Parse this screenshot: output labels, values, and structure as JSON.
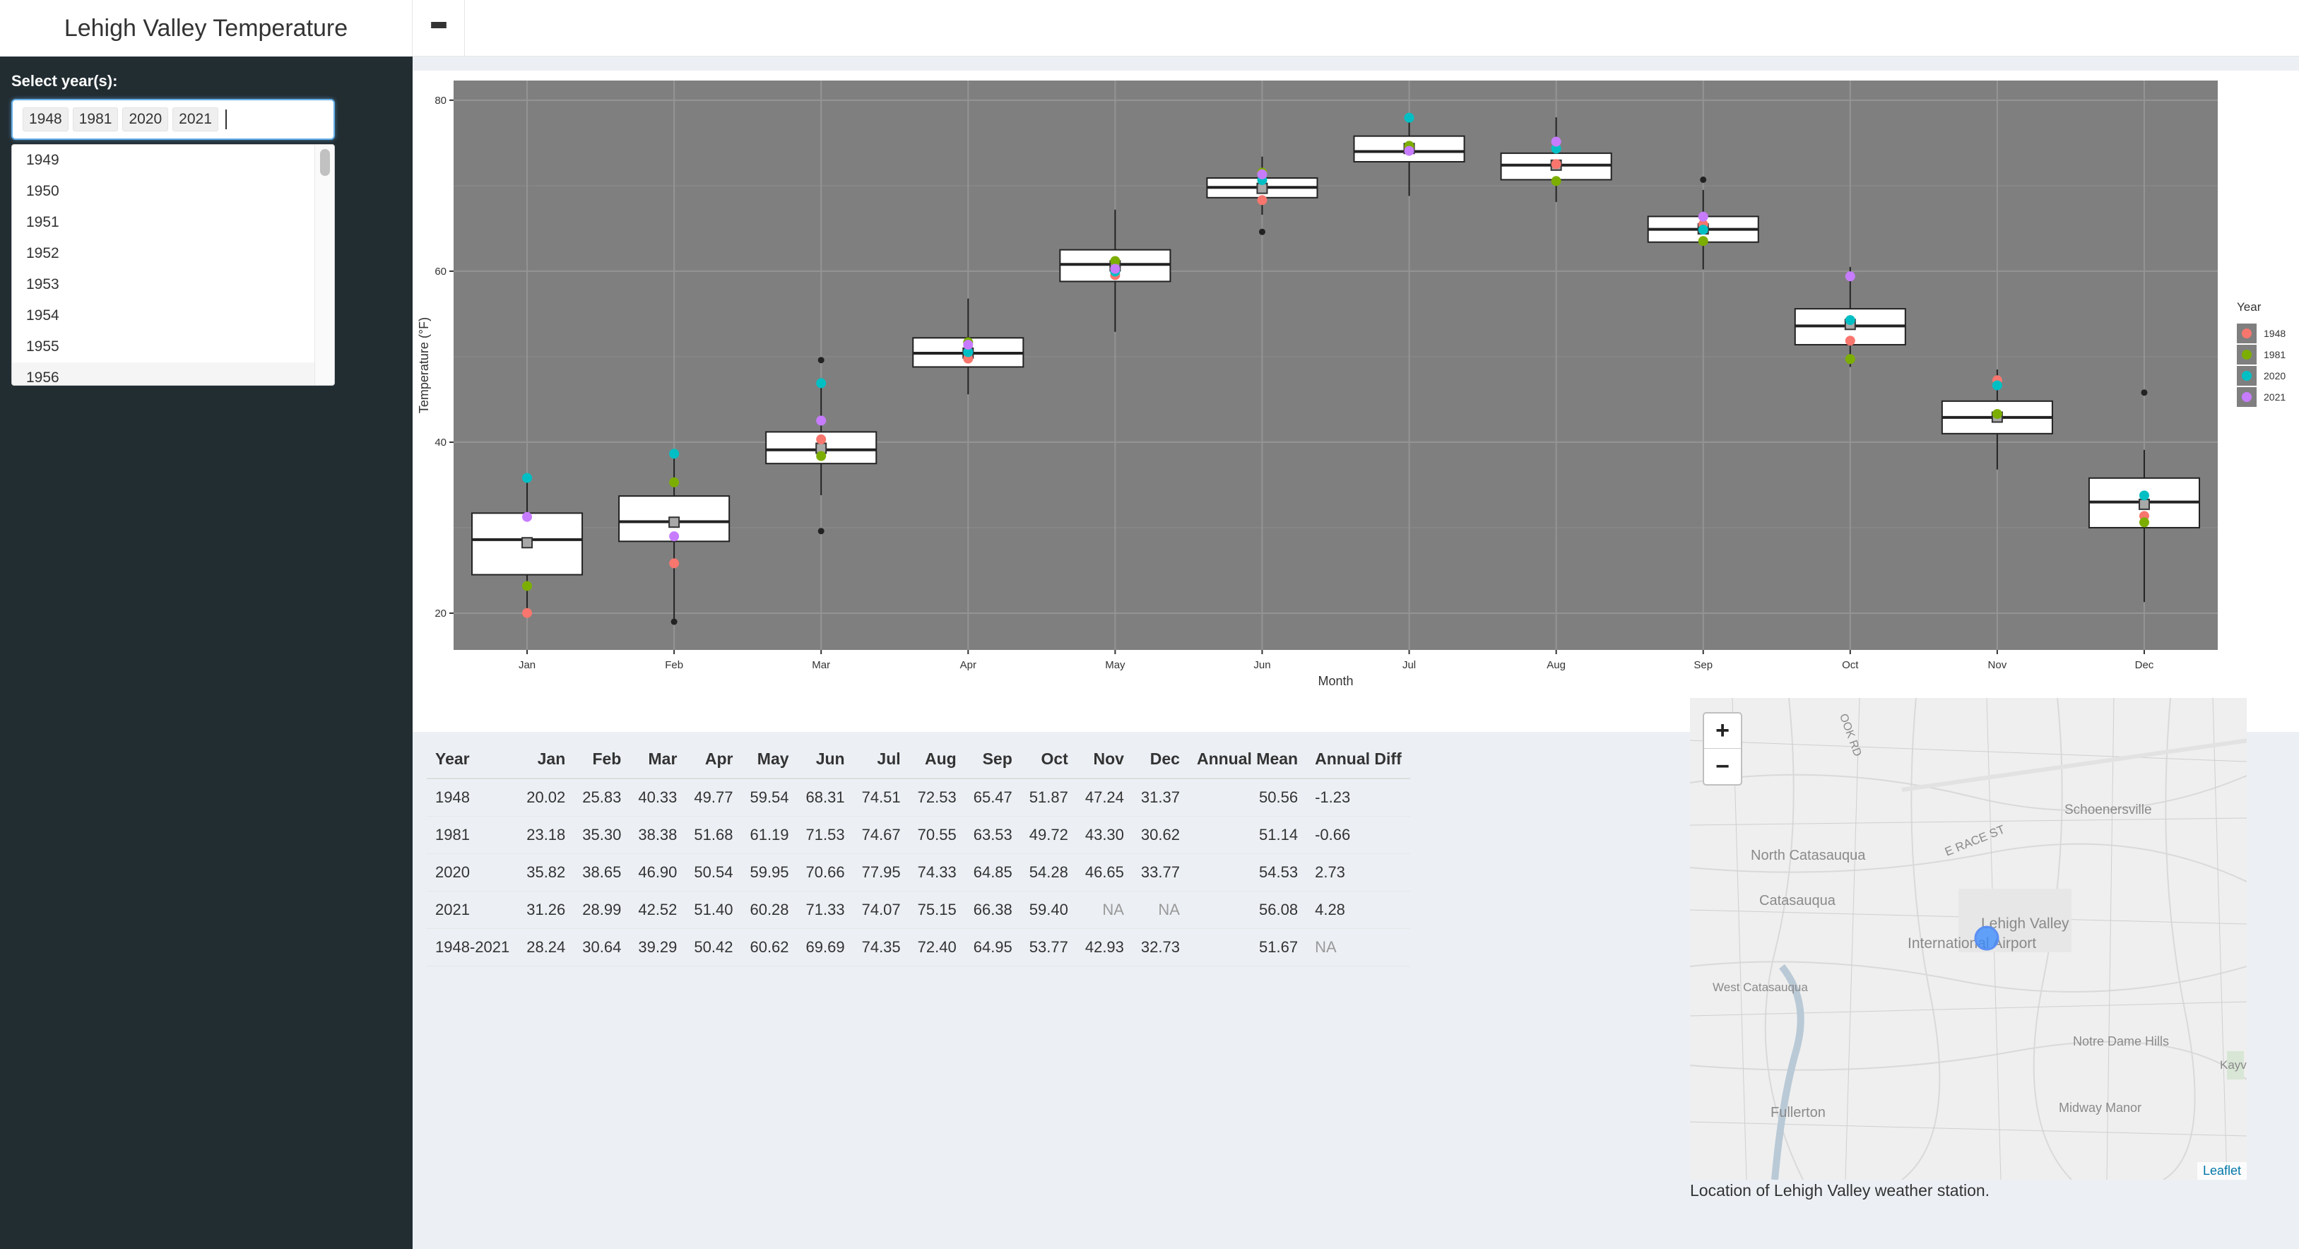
{
  "app": {
    "title": "Lehigh Valley Temperature"
  },
  "sidebar": {
    "select_label": "Select year(s):",
    "selected_years": [
      "1948",
      "1981",
      "2020",
      "2021"
    ],
    "dropdown_options": [
      "1949",
      "1950",
      "1951",
      "1952",
      "1953",
      "1954",
      "1955",
      "1956"
    ]
  },
  "colors": {
    "1948": "#F8766D",
    "1981": "#7CAE00",
    "2020": "#00BFC4",
    "2021": "#C77CFF",
    "panel": "#7f7f7f"
  },
  "chart_data": {
    "type": "box",
    "xlabel": "Month",
    "ylabel": "Temperature (°F)",
    "ylim": [
      15.7,
      82.3
    ],
    "yticks": [
      20,
      40,
      60,
      80
    ],
    "categories": [
      "Jan",
      "Feb",
      "Mar",
      "Apr",
      "May",
      "Jun",
      "Jul",
      "Aug",
      "Sep",
      "Oct",
      "Nov",
      "Dec"
    ],
    "legend": {
      "title": "Year",
      "placement": "right",
      "entries": [
        "1948",
        "1981",
        "2020",
        "2021"
      ]
    },
    "boxes": [
      {
        "q1": 24.5,
        "median": 28.6,
        "q3": 31.7,
        "wlo": 19.8,
        "whi": 35.8,
        "mean": 28.24,
        "outliers": []
      },
      {
        "q1": 28.4,
        "median": 30.7,
        "q3": 33.7,
        "wlo": 19.2,
        "whi": 38.6,
        "mean": 30.64,
        "outliers": [
          19.0
        ]
      },
      {
        "q1": 37.5,
        "median": 39.1,
        "q3": 41.2,
        "wlo": 33.8,
        "whi": 46.9,
        "mean": 39.29,
        "outliers": [
          49.6,
          29.6
        ]
      },
      {
        "q1": 48.8,
        "median": 50.4,
        "q3": 52.2,
        "wlo": 45.6,
        "whi": 56.8,
        "mean": 50.42,
        "outliers": []
      },
      {
        "q1": 58.8,
        "median": 60.8,
        "q3": 62.5,
        "wlo": 52.9,
        "whi": 67.2,
        "mean": 60.62,
        "outliers": []
      },
      {
        "q1": 68.6,
        "median": 69.8,
        "q3": 70.9,
        "wlo": 66.6,
        "whi": 73.4,
        "mean": 69.69,
        "outliers": [
          64.6
        ]
      },
      {
        "q1": 72.8,
        "median": 74.0,
        "q3": 75.8,
        "wlo": 68.8,
        "whi": 77.9,
        "mean": 74.35,
        "outliers": []
      },
      {
        "q1": 70.7,
        "median": 72.4,
        "q3": 73.8,
        "wlo": 68.1,
        "whi": 78.0,
        "mean": 72.4,
        "outliers": []
      },
      {
        "q1": 63.4,
        "median": 64.9,
        "q3": 66.4,
        "wlo": 60.2,
        "whi": 69.5,
        "mean": 64.95,
        "outliers": [
          70.7
        ]
      },
      {
        "q1": 51.4,
        "median": 53.6,
        "q3": 55.6,
        "wlo": 48.8,
        "whi": 60.5,
        "mean": 53.77,
        "outliers": []
      },
      {
        "q1": 41.0,
        "median": 42.9,
        "q3": 44.8,
        "wlo": 36.8,
        "whi": 48.5,
        "mean": 42.93,
        "outliers": []
      },
      {
        "q1": 30.0,
        "median": 33.0,
        "q3": 35.8,
        "wlo": 21.3,
        "whi": 39.1,
        "mean": 32.73,
        "outliers": [
          45.8
        ]
      }
    ],
    "series": [
      {
        "name": "1948",
        "values": [
          20.02,
          25.83,
          40.33,
          49.77,
          59.54,
          68.31,
          74.51,
          72.53,
          65.47,
          51.87,
          47.24,
          31.37
        ]
      },
      {
        "name": "1981",
        "values": [
          23.18,
          35.3,
          38.38,
          51.68,
          61.19,
          71.53,
          74.67,
          70.55,
          63.53,
          49.72,
          43.3,
          30.62
        ]
      },
      {
        "name": "2020",
        "values": [
          35.82,
          38.65,
          46.9,
          50.54,
          59.95,
          70.66,
          77.95,
          74.33,
          64.85,
          54.28,
          46.65,
          33.77
        ]
      },
      {
        "name": "2021",
        "values": [
          31.26,
          28.99,
          42.52,
          51.4,
          60.28,
          71.33,
          74.07,
          75.15,
          66.38,
          59.4,
          null,
          null
        ]
      }
    ]
  },
  "table": {
    "columns": [
      "Year",
      "Jan",
      "Feb",
      "Mar",
      "Apr",
      "May",
      "Jun",
      "Jul",
      "Aug",
      "Sep",
      "Oct",
      "Nov",
      "Dec",
      "Annual Mean",
      "Annual Diff"
    ],
    "rows": [
      [
        "1948",
        "20.02",
        "25.83",
        "40.33",
        "49.77",
        "59.54",
        "68.31",
        "74.51",
        "72.53",
        "65.47",
        "51.87",
        "47.24",
        "31.37",
        "50.56",
        "-1.23"
      ],
      [
        "1981",
        "23.18",
        "35.30",
        "38.38",
        "51.68",
        "61.19",
        "71.53",
        "74.67",
        "70.55",
        "63.53",
        "49.72",
        "43.30",
        "30.62",
        "51.14",
        "-0.66"
      ],
      [
        "2020",
        "35.82",
        "38.65",
        "46.90",
        "50.54",
        "59.95",
        "70.66",
        "77.95",
        "74.33",
        "64.85",
        "54.28",
        "46.65",
        "33.77",
        "54.53",
        "2.73"
      ],
      [
        "2021",
        "31.26",
        "28.99",
        "42.52",
        "51.40",
        "60.28",
        "71.33",
        "74.07",
        "75.15",
        "66.38",
        "59.40",
        "NA",
        "NA",
        "56.08",
        "4.28"
      ],
      [
        "1948-2021",
        "28.24",
        "30.64",
        "39.29",
        "50.42",
        "60.62",
        "69.69",
        "74.35",
        "72.40",
        "64.95",
        "53.77",
        "42.93",
        "32.73",
        "51.67",
        "NA"
      ]
    ]
  },
  "map": {
    "labels": [
      "North Catasauqua",
      "Catasauqua",
      "Schoenersville",
      "E RACE ST",
      "Lehigh Valley",
      "International Airport",
      "West Catasauqua",
      "Notre Dame Hills",
      "Fullerton",
      "Midway Manor",
      "Kayv",
      "OOK RD",
      "ROAD"
    ],
    "zoom_in": "+",
    "zoom_out": "−",
    "attribution": "Leaflet",
    "caption": "Location of Lehigh Valley weather station."
  }
}
